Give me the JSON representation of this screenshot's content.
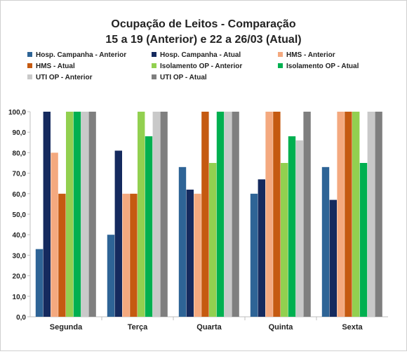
{
  "chart_data": {
    "type": "bar",
    "title": "Ocupação de Leitos - Comparação",
    "subtitle": "15 a 19 (Anterior) e 22 a 26/03 (Atual)",
    "categories": [
      "Segunda",
      "Terça",
      "Quarta",
      "Quinta",
      "Sexta"
    ],
    "ylim": [
      0,
      100
    ],
    "yticks": [
      "0,0",
      "10,0",
      "20,0",
      "30,0",
      "40,0",
      "50,0",
      "60,0",
      "70,0",
      "80,0",
      "90,0",
      "100,0"
    ],
    "grid": false,
    "legend_position": "top",
    "series": [
      {
        "name": "Hosp. Campanha - Anterior",
        "color": "#2e6496",
        "values": [
          33,
          40,
          73,
          60,
          73
        ]
      },
      {
        "name": "Hosp. Campanha - Atual",
        "color": "#152a5e",
        "values": [
          100,
          81,
          62,
          67,
          57
        ]
      },
      {
        "name": "HMS - Anterior",
        "color": "#f4a97f",
        "values": [
          80,
          60,
          60,
          100,
          100
        ]
      },
      {
        "name": "HMS - Atual",
        "color": "#c55a11",
        "values": [
          60,
          60,
          100,
          100,
          100
        ]
      },
      {
        "name": "Isolamento OP - Anterior",
        "color": "#92d050",
        "values": [
          100,
          100,
          75,
          75,
          100
        ]
      },
      {
        "name": "Isolamento OP - Atual",
        "color": "#00b050",
        "values": [
          100,
          88,
          100,
          88,
          75
        ]
      },
      {
        "name": "UTI OP - Anterior",
        "color": "#c9c9c9",
        "values": [
          100,
          100,
          100,
          86,
          100
        ]
      },
      {
        "name": "UTI OP - Atual",
        "color": "#7f7f7f",
        "values": [
          100,
          100,
          100,
          100,
          100
        ]
      }
    ]
  }
}
